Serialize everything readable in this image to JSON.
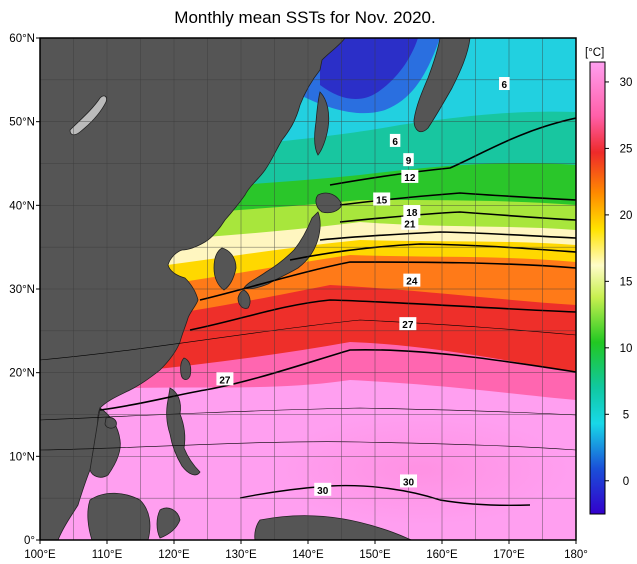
{
  "title": "Monthly mean SSTs for Nov. 2020.",
  "map": {
    "lon_range": [
      100,
      180
    ],
    "lat_range": [
      0,
      60
    ],
    "lon_ticks": [
      "100°E",
      "110°E",
      "120°E",
      "130°E",
      "140°E",
      "150°E",
      "160°E",
      "170°E",
      "180°"
    ],
    "lat_ticks": [
      "60°N",
      "50°N",
      "40°N",
      "30°N",
      "20°N",
      "10°N",
      "0°"
    ],
    "land_color": "#555555",
    "contour_labels": [
      {
        "text": "6",
        "lon": 169.3,
        "lat": 54.5
      },
      {
        "text": "6",
        "lon": 153.0,
        "lat": 47.7
      },
      {
        "text": "9",
        "lon": 155.0,
        "lat": 45.4
      },
      {
        "text": "12",
        "lon": 155.2,
        "lat": 43.4
      },
      {
        "text": "15",
        "lon": 151.0,
        "lat": 40.7
      },
      {
        "text": "18",
        "lon": 155.5,
        "lat": 39.2
      },
      {
        "text": "21",
        "lon": 155.2,
        "lat": 37.8
      },
      {
        "text": "24",
        "lon": 155.5,
        "lat": 31.0
      },
      {
        "text": "27",
        "lon": 154.9,
        "lat": 25.8
      },
      {
        "text": "27",
        "lon": 127.6,
        "lat": 19.2
      },
      {
        "text": "30",
        "lon": 142.2,
        "lat": 6.0
      },
      {
        "text": "30",
        "lon": 155.0,
        "lat": 7.0
      }
    ]
  },
  "colorbar": {
    "unit": "[°C]",
    "range": [
      -2.5,
      31.5
    ],
    "ticks": [
      "30",
      "25",
      "20",
      "15",
      "10",
      "5",
      "0"
    ],
    "tick_values": [
      30,
      25,
      20,
      15,
      10,
      5,
      0
    ]
  }
}
